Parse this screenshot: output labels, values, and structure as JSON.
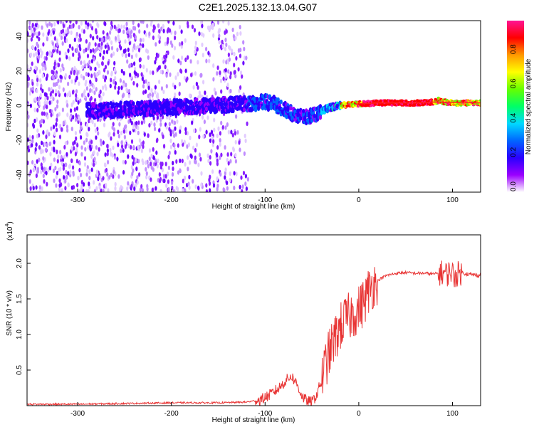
{
  "title": "C2E1.2025.132.13.04.G07",
  "colors": {
    "background": "#ffffff",
    "axis": "#000000",
    "snr_line": "#e83434"
  },
  "chart_data": [
    {
      "type": "heatmap",
      "xlabel": "Height of straight line (km)",
      "ylabel": "Frequency (Hz)",
      "xlim": [
        -354,
        130
      ],
      "ylim": [
        -50,
        49
      ],
      "xticks": [
        -300,
        -200,
        -100,
        0,
        100
      ],
      "yticks": [
        -40,
        -20,
        0,
        20,
        40
      ],
      "colorbar": {
        "label": "Normalized spectral amplitude",
        "range": [
          0,
          1
        ],
        "ticks": [
          "0.0",
          "0.2",
          "0.4",
          "0.6",
          "0.8"
        ],
        "tick_values": [
          0.0,
          0.2,
          0.4,
          0.6,
          0.8
        ],
        "colormap": [
          "#ffffff",
          "#9b00ff",
          "#2a00ff",
          "#0066ff",
          "#00d9ff",
          "#00ff66",
          "#66ff00",
          "#ffff00",
          "#ff9900",
          "#ff0000",
          "#ff1493"
        ]
      },
      "ridge": {
        "x": [
          -280,
          -240,
          -200,
          -160,
          -120,
          -100,
          -90,
          -80,
          -70,
          -60,
          -50,
          -40,
          -30,
          -20,
          -10,
          0,
          20,
          40,
          60,
          80,
          85,
          90,
          100,
          130
        ],
        "y": [
          -3,
          -2,
          -1,
          0,
          1,
          2,
          1,
          -2,
          -5,
          -7,
          -6,
          -3,
          -1,
          0,
          0.5,
          1,
          1.5,
          1.5,
          1.5,
          2,
          3,
          2,
          1.5,
          1.5
        ]
      },
      "noise_extent_x": [
        -354,
        -118
      ]
    },
    {
      "type": "line",
      "xlabel": "Height of straight line (km)",
      "ylabel": "SNR (10 * v/v)",
      "y_multiplier": "(x10",
      "y_multiplier_exp": "4",
      "y_multiplier_close": ")",
      "xlim": [
        -354,
        130
      ],
      "ylim": [
        0,
        2.4
      ],
      "xticks": [
        -300,
        -200,
        -100,
        0,
        100
      ],
      "yticks": [
        0.5,
        1.0,
        1.5,
        2.0
      ],
      "ytick_labels": [
        "0.5",
        "1.0",
        "1.5",
        "2.0"
      ],
      "series": [
        {
          "x": [
            -354,
            -300,
            -250,
            -200,
            -150,
            -120,
            -105,
            -95,
            -85,
            -78,
            -72,
            -66,
            -60,
            -55,
            -50,
            -45,
            -40,
            -35,
            -30,
            -25,
            -20,
            -15,
            -10,
            -5,
            0,
            5,
            10,
            15,
            20,
            25,
            30,
            40,
            50,
            60,
            70,
            80,
            85,
            90,
            95,
            98,
            100,
            102,
            105,
            110,
            120,
            130
          ],
          "y": [
            0.02,
            0.02,
            0.03,
            0.04,
            0.04,
            0.05,
            0.08,
            0.15,
            0.25,
            0.35,
            0.42,
            0.3,
            0.12,
            0.06,
            0.05,
            0.15,
            0.35,
            0.6,
            0.8,
            0.95,
            1.1,
            1.2,
            1.25,
            1.3,
            1.35,
            1.45,
            1.6,
            1.7,
            1.75,
            1.8,
            1.83,
            1.86,
            1.87,
            1.86,
            1.86,
            1.85,
            1.86,
            1.87,
            1.85,
            1.9,
            1.86,
            1.82,
            1.85,
            1.87,
            1.84,
            1.83
          ]
        }
      ]
    }
  ]
}
